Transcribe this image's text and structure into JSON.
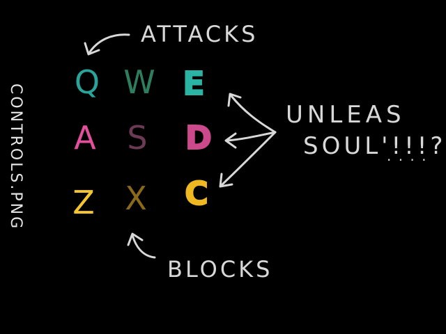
{
  "labels": {
    "attacks": "ATTACKS",
    "blocks": "BLOCKS",
    "unleash_line1": "UNLEAS",
    "unleash_line2": "SOUL'!!!?",
    "unleash_dots": ". . . .",
    "file_name": "CONTROLS.PNG"
  },
  "keys": {
    "row_attacks": [
      {
        "letter": "Q",
        "color": "#2aa39a"
      },
      {
        "letter": "W",
        "color": "#2e7d5e"
      },
      {
        "letter": "E",
        "color": "#2bb3a4"
      }
    ],
    "row_middle": [
      {
        "letter": "A",
        "color": "#e2509b"
      },
      {
        "letter": "S",
        "color": "#6b3a55"
      },
      {
        "letter": "D",
        "color": "#cc4a8c"
      }
    ],
    "row_blocks": [
      {
        "letter": "Z",
        "color": "#f4c431"
      },
      {
        "letter": "X",
        "color": "#8a6a1a"
      },
      {
        "letter": "C",
        "color": "#f0b820"
      }
    ]
  },
  "colors": {
    "chalk": "#d8d8d8",
    "background": "#000000"
  }
}
